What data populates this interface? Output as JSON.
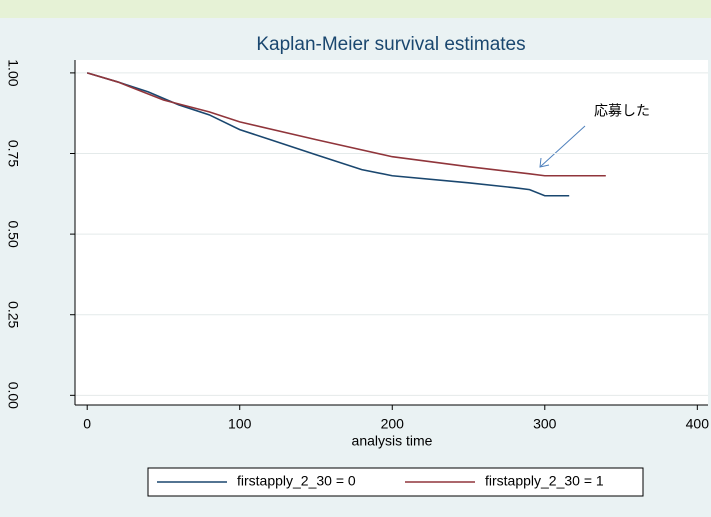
{
  "chart_data": {
    "type": "line",
    "title": "Kaplan-Meier survival estimates",
    "x_label": "analysis time",
    "annotation": "応募した",
    "xlim": [
      -8,
      407
    ],
    "ylim": [
      -0.03,
      1.04
    ],
    "xticks": [
      0,
      100,
      200,
      300,
      400
    ],
    "yticks": [
      {
        "value": 0,
        "label": "0.00"
      },
      {
        "value": 0.25,
        "label": "0.25"
      },
      {
        "value": 0.5,
        "label": "0.50"
      },
      {
        "value": 0.75,
        "label": "0.75"
      },
      {
        "value": 1,
        "label": "1.00"
      }
    ],
    "grid": true,
    "legend": "bottom",
    "series": [
      {
        "name": "firstapply_2_30 = 0",
        "color": "#1a476f",
        "x": [
          0,
          20,
          40,
          60,
          80,
          100,
          120,
          150,
          180,
          200,
          250,
          280,
          290,
          300,
          316
        ],
        "values": [
          1.0,
          0.972,
          0.941,
          0.901,
          0.87,
          0.824,
          0.793,
          0.746,
          0.7,
          0.681,
          0.659,
          0.644,
          0.638,
          0.619,
          0.619
        ]
      },
      {
        "name": "firstapply_2_30 = 1",
        "color": "#90353b",
        "x": [
          0,
          20,
          50,
          80,
          100,
          150,
          200,
          250,
          290,
          300,
          340
        ],
        "values": [
          1.0,
          0.972,
          0.916,
          0.879,
          0.848,
          0.793,
          0.74,
          0.709,
          0.687,
          0.681,
          0.681
        ]
      }
    ]
  }
}
